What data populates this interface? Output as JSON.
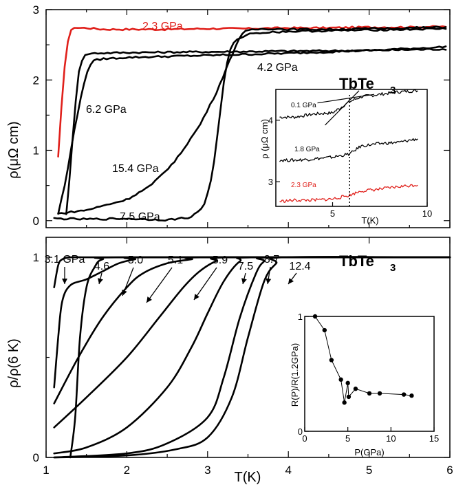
{
  "chart_data": [
    {
      "id": "top",
      "type": "line",
      "title_main": "TbTe",
      "title_sub": "3",
      "ylabel": "ρ(μΩ cm)",
      "xlim": [
        1,
        6
      ],
      "ylim": [
        -0.1,
        3
      ],
      "yticks": [
        0,
        1,
        2,
        3
      ],
      "xticks": [],
      "series": [
        {
          "name": "2.3 GPa",
          "color": "#e0201b",
          "x": [
            1.15,
            1.19,
            1.23,
            1.27,
            1.31,
            1.35,
            1.4,
            1.5,
            1.7,
            2.0,
            2.5,
            3.0,
            3.5,
            4.0,
            4.5,
            5.0,
            5.5,
            5.95
          ],
          "y": [
            0.9,
            1.6,
            2.2,
            2.55,
            2.7,
            2.75,
            2.74,
            2.74,
            2.72,
            2.72,
            2.72,
            2.73,
            2.73,
            2.74,
            2.74,
            2.75,
            2.75,
            2.76
          ]
        },
        {
          "name": "4.2 GPa",
          "color": "#000000",
          "x": [
            1.25,
            1.3,
            1.35,
            1.4,
            1.45,
            1.5,
            1.6,
            2.0,
            3.0,
            4.0,
            5.0,
            5.95
          ],
          "y": [
            0.1,
            0.7,
            1.5,
            2.1,
            2.3,
            2.37,
            2.38,
            2.39,
            2.4,
            2.41,
            2.42,
            2.44
          ]
        },
        {
          "name": "6.2 GPa",
          "color": "#000000",
          "x": [
            1.15,
            1.25,
            1.35,
            1.45,
            1.5,
            1.55,
            1.6,
            1.7,
            2.0,
            3.0,
            4.0,
            5.0,
            5.95
          ],
          "y": [
            0.1,
            0.6,
            1.3,
            1.85,
            2.1,
            2.22,
            2.28,
            2.3,
            2.32,
            2.35,
            2.38,
            2.42,
            2.47
          ]
        },
        {
          "name": "15.4 GPa",
          "color": "#000000",
          "x": [
            1.15,
            1.5,
            2.0,
            2.3,
            2.6,
            2.9,
            3.1,
            3.3,
            3.4,
            3.45,
            3.5,
            3.6,
            3.8,
            4.0,
            4.5,
            5.0,
            5.5,
            5.95
          ],
          "y": [
            0.1,
            0.15,
            0.3,
            0.5,
            0.85,
            1.35,
            1.8,
            2.35,
            2.62,
            2.68,
            2.7,
            2.72,
            2.73,
            2.72,
            2.72,
            2.73,
            2.74,
            2.75
          ]
        },
        {
          "name": "7.5 GPa",
          "color": "#000000",
          "x": [
            1.1,
            1.5,
            2.0,
            2.5,
            2.8,
            2.95,
            3.05,
            3.1,
            3.15,
            3.2,
            3.25,
            3.3,
            3.4,
            3.5,
            3.6,
            3.8,
            4.0,
            4.5,
            5.0,
            5.5,
            5.95
          ],
          "y": [
            0.03,
            0.02,
            0.03,
            0.01,
            0.05,
            0.2,
            0.6,
            1.0,
            1.5,
            1.95,
            2.3,
            2.5,
            2.6,
            2.65,
            2.67,
            2.68,
            2.69,
            2.7,
            2.71,
            2.72,
            2.73
          ]
        }
      ],
      "annotations": [
        "2.3 GPa",
        "4.2 GPa",
        "6.2 GPa",
        "15.4 GPa",
        "7.5 GPa"
      ]
    },
    {
      "id": "top-inset",
      "type": "line",
      "ylabel": "ρ (μΩ cm)",
      "xlabel": "T(K)",
      "xlim": [
        2,
        10
      ],
      "ylim": [
        2.6,
        4.5
      ],
      "xticks": [
        5,
        10
      ],
      "yticks": [
        3,
        4
      ],
      "series": [
        {
          "name": "0.1 GPa",
          "color": "#000000",
          "x": [
            2.2,
            3,
            4,
            5,
            5.9,
            6.5,
            7.5,
            8.5,
            9.5
          ],
          "y": [
            4.05,
            4.05,
            4.1,
            4.12,
            4.3,
            4.38,
            4.42,
            4.46,
            4.48
          ]
        },
        {
          "name": "1.8 GPa",
          "color": "#000000",
          "x": [
            2.2,
            3,
            4,
            5,
            5.9,
            6.5,
            7.5,
            8.5,
            9.5
          ],
          "y": [
            3.35,
            3.35,
            3.37,
            3.4,
            3.45,
            3.58,
            3.62,
            3.64,
            3.7
          ]
        },
        {
          "name": "2.3 GPa",
          "color": "#e0201b",
          "x": [
            2.2,
            3,
            4,
            5,
            5.9,
            6.5,
            7.5,
            8.5,
            9.5
          ],
          "y": [
            2.68,
            2.7,
            2.7,
            2.72,
            2.78,
            2.85,
            2.88,
            2.92,
            2.95
          ]
        }
      ],
      "vline_x": 5.9
    },
    {
      "id": "bottom",
      "type": "line",
      "title_main": "TbTe",
      "title_sub": "3",
      "ylabel": "ρ/ρ(6 K)",
      "xlabel": "T(K)",
      "xlim": [
        1,
        6
      ],
      "ylim": [
        0,
        1.1
      ],
      "xticks": [
        1,
        2,
        3,
        4,
        5,
        6
      ],
      "yticks": [
        0,
        1
      ],
      "series": [
        {
          "name": "3.1 GPa",
          "x": [
            1.1,
            1.15,
            1.2,
            1.3,
            1.5,
            2.0,
            6.0
          ],
          "y": [
            0.85,
            0.96,
            0.99,
            1.0,
            1.0,
            1.0,
            1.0
          ]
        },
        {
          "name": "4.6 GPa",
          "x": [
            1.3,
            1.36,
            1.42,
            1.5,
            1.6,
            1.7,
            2.0,
            6.0
          ],
          "y": [
            0.0,
            0.2,
            0.6,
            0.85,
            0.95,
            0.99,
            1.0,
            1.0
          ]
        },
        {
          "name": "5.0 GPa",
          "x": [
            1.1,
            1.15,
            1.2,
            1.3,
            1.5,
            1.7,
            1.9,
            2.1,
            2.3,
            6.0
          ],
          "y": [
            0.35,
            0.6,
            0.78,
            0.86,
            0.89,
            0.93,
            0.97,
            0.99,
            1.0,
            1.0
          ]
        },
        {
          "name": "5.1 GPa",
          "x": [
            1.1,
            1.4,
            1.7,
            2.0,
            2.2,
            2.5,
            2.8,
            3.0,
            6.0
          ],
          "y": [
            0.27,
            0.5,
            0.7,
            0.85,
            0.92,
            0.97,
            0.99,
            1.0,
            1.0
          ]
        },
        {
          "name": "5.9 GPa",
          "x": [
            1.1,
            1.5,
            2.0,
            2.4,
            2.7,
            2.9,
            3.1,
            3.3,
            6.0
          ],
          "y": [
            0.15,
            0.3,
            0.5,
            0.7,
            0.85,
            0.93,
            0.98,
            1.0,
            1.0
          ]
        },
        {
          "name": "7.5 GPa",
          "x": [
            1.1,
            1.5,
            2.0,
            2.5,
            2.8,
            3.0,
            3.2,
            3.4,
            3.6,
            6.0
          ],
          "y": [
            0.02,
            0.05,
            0.15,
            0.35,
            0.55,
            0.72,
            0.88,
            0.98,
            1.0,
            1.0
          ]
        },
        {
          "name": "8.7 GPa",
          "x": [
            1.1,
            2.0,
            2.5,
            3.0,
            3.2,
            3.4,
            3.6,
            3.7,
            3.8,
            6.0
          ],
          "y": [
            0.0,
            0.02,
            0.07,
            0.2,
            0.4,
            0.7,
            0.92,
            0.98,
            1.0,
            1.0
          ]
        },
        {
          "name": "12.4 GPa",
          "x": [
            1.1,
            2.0,
            2.6,
            3.0,
            3.3,
            3.5,
            3.7,
            3.85,
            3.95,
            6.0
          ],
          "y": [
            0.0,
            0.01,
            0.04,
            0.1,
            0.3,
            0.6,
            0.88,
            0.97,
            1.0,
            1.0
          ]
        }
      ],
      "arrow_labels": [
        "3.1 GPa",
        "4.6",
        "5.0",
        "5.1",
        "5.9",
        "7.5",
        "8.7",
        "12.4"
      ]
    },
    {
      "id": "bottom-inset",
      "type": "line",
      "xlabel": "P(GPa)",
      "ylabel": "R(P)/R(1.2GPa)",
      "xlim": [
        0,
        15
      ],
      "ylim": [
        0,
        1
      ],
      "xticks": [
        0,
        5,
        10,
        15
      ],
      "yticks": [
        0,
        1
      ],
      "x": [
        1.2,
        2.3,
        3.1,
        4.2,
        4.6,
        5.0,
        5.1,
        5.9,
        7.5,
        8.7,
        11.5,
        12.4
      ],
      "y": [
        1.0,
        0.88,
        0.62,
        0.45,
        0.25,
        0.42,
        0.3,
        0.37,
        0.33,
        0.33,
        0.32,
        0.31
      ]
    }
  ]
}
